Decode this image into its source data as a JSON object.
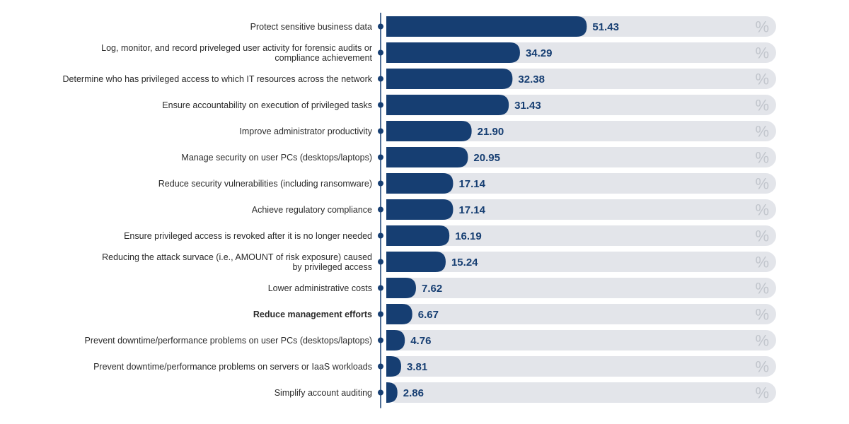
{
  "chart_data": {
    "type": "bar",
    "orientation": "horizontal",
    "categories": [
      "Protect sensitive business data",
      "Log, monitor, and record priveleged user activity for forensic audits or compliance achievement",
      "Determine who has privileged access to which IT resources across the network",
      "Ensure accountability on execution of privileged tasks",
      "Improve administrator productivity",
      "Manage security on user PCs (desktops/laptops)",
      "Reduce security vulnerabilities (including ransomware)",
      "Achieve regulatory compliance",
      "Ensure privileged access is revoked after it is no longer needed",
      "Reducing the attack survace (i.e., AMOUNT of risk exposure) caused by privileged access",
      "Lower administrative costs",
      "Reduce management efforts",
      "Prevent downtime/performance problems on user PCs (desktops/laptops)",
      "Prevent downtime/performance problems on servers or IaaS workloads",
      "Simplify account auditing"
    ],
    "category_lines": [
      [
        "Protect sensitive business data"
      ],
      [
        "Log, monitor, and record priveleged user activity for forensic audits or",
        "compliance achievement"
      ],
      [
        "Determine who has privileged access to which IT resources across the network"
      ],
      [
        "Ensure accountability on execution of privileged tasks"
      ],
      [
        "Improve administrator productivity"
      ],
      [
        "Manage security on user PCs (desktops/laptops)"
      ],
      [
        "Reduce security vulnerabilities (including ransomware)"
      ],
      [
        "Achieve regulatory compliance"
      ],
      [
        "Ensure privileged access is revoked after it is no longer needed"
      ],
      [
        "Reducing the attack survace (i.e., AMOUNT of risk exposure) caused",
        "by privileged access"
      ],
      [
        "Lower administrative costs"
      ],
      [
        "Reduce management efforts"
      ],
      [
        "Prevent downtime/performance problems on user PCs (desktops/laptops)"
      ],
      [
        "Prevent downtime/performance problems on servers or IaaS workloads"
      ],
      [
        "Simplify account auditing"
      ]
    ],
    "values": [
      51.43,
      34.29,
      32.38,
      31.43,
      21.9,
      20.95,
      17.14,
      17.14,
      16.19,
      15.24,
      7.62,
      6.67,
      4.76,
      3.81,
      2.86
    ],
    "value_labels": [
      "51.43",
      "34.29",
      "32.38",
      "31.43",
      "21.90",
      "20.95",
      "17.14",
      "17.14",
      "16.19",
      "15.24",
      "7.62",
      "6.67",
      "4.76",
      "3.81",
      "2.86"
    ],
    "unit_symbol": "%",
    "xlim": [
      0,
      100
    ],
    "bold_category_index": 11,
    "title": "",
    "xlabel": "",
    "ylabel": "",
    "grid": false,
    "legend": "none",
    "colors": {
      "bar": "#163e72",
      "track": "#e3e5ea",
      "value_label": "#163e72",
      "percent_sign": "#c2c6cd",
      "axis": "#163e72",
      "category_text": "#2b2b2b"
    }
  }
}
